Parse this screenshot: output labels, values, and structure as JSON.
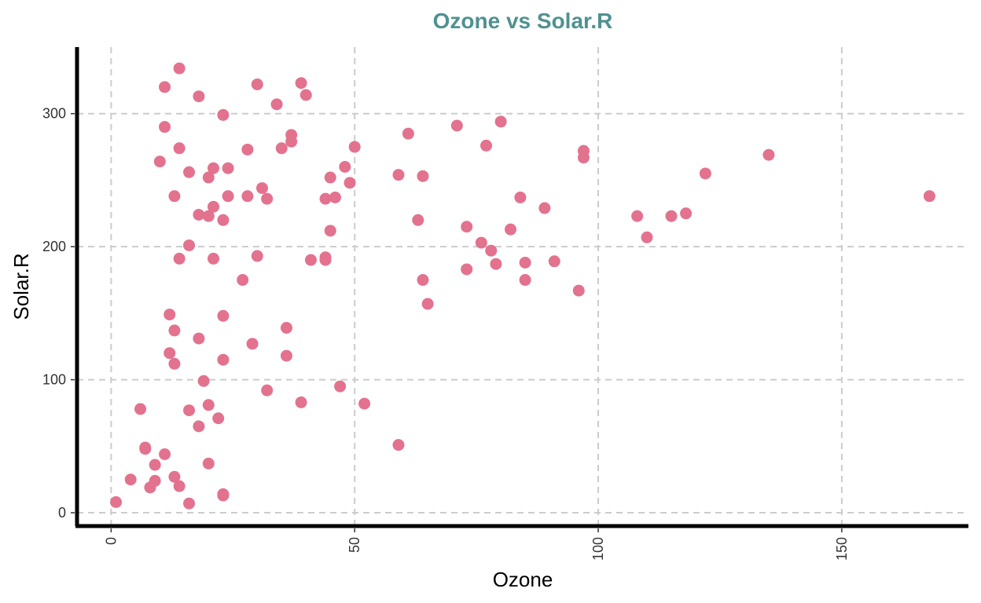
{
  "chart_data": {
    "type": "scatter",
    "title": "Ozone vs Solar.R",
    "xlabel": "Ozone",
    "ylabel": "Solar.R",
    "xlim": [
      -7,
      176
    ],
    "ylim": [
      -10,
      350
    ],
    "xticks": [
      0,
      50,
      100,
      150
    ],
    "yticks": [
      0,
      100,
      200,
      300
    ],
    "grid": true,
    "legend": "none",
    "colors": {
      "title": "#4f9191",
      "point": "#e3728f",
      "grid": "#cccccc",
      "axis": "#000000"
    },
    "points": [
      [
        1,
        8
      ],
      [
        4,
        25
      ],
      [
        6,
        78
      ],
      [
        7,
        48
      ],
      [
        7,
        49
      ],
      [
        8,
        19
      ],
      [
        9,
        24
      ],
      [
        9,
        36
      ],
      [
        10,
        264
      ],
      [
        11,
        320
      ],
      [
        11,
        290
      ],
      [
        11,
        44
      ],
      [
        12,
        149
      ],
      [
        12,
        120
      ],
      [
        13,
        238
      ],
      [
        13,
        137
      ],
      [
        13,
        112
      ],
      [
        13,
        27
      ],
      [
        14,
        334
      ],
      [
        14,
        274
      ],
      [
        14,
        191
      ],
      [
        14,
        20
      ],
      [
        16,
        256
      ],
      [
        16,
        201
      ],
      [
        16,
        77
      ],
      [
        16,
        7
      ],
      [
        18,
        313
      ],
      [
        18,
        224
      ],
      [
        18,
        131
      ],
      [
        18,
        65
      ],
      [
        19,
        99
      ],
      [
        20,
        252
      ],
      [
        20,
        223
      ],
      [
        20,
        81
      ],
      [
        20,
        37
      ],
      [
        21,
        259
      ],
      [
        21,
        230
      ],
      [
        21,
        191
      ],
      [
        22,
        71
      ],
      [
        23,
        299
      ],
      [
        23,
        220
      ],
      [
        23,
        148
      ],
      [
        23,
        115
      ],
      [
        23,
        14
      ],
      [
        23,
        13
      ],
      [
        24,
        259
      ],
      [
        24,
        238
      ],
      [
        27,
        175
      ],
      [
        28,
        273
      ],
      [
        28,
        238
      ],
      [
        29,
        127
      ],
      [
        30,
        322
      ],
      [
        30,
        193
      ],
      [
        31,
        244
      ],
      [
        32,
        236
      ],
      [
        32,
        92
      ],
      [
        34,
        307
      ],
      [
        35,
        274
      ],
      [
        36,
        139
      ],
      [
        36,
        118
      ],
      [
        37,
        284
      ],
      [
        37,
        279
      ],
      [
        39,
        323
      ],
      [
        39,
        83
      ],
      [
        40,
        314
      ],
      [
        41,
        190
      ],
      [
        44,
        236
      ],
      [
        44,
        192
      ],
      [
        44,
        190
      ],
      [
        45,
        252
      ],
      [
        45,
        212
      ],
      [
        46,
        237
      ],
      [
        47,
        95
      ],
      [
        48,
        260
      ],
      [
        49,
        248
      ],
      [
        50,
        275
      ],
      [
        52,
        82
      ],
      [
        59,
        254
      ],
      [
        59,
        51
      ],
      [
        61,
        285
      ],
      [
        63,
        220
      ],
      [
        64,
        253
      ],
      [
        64,
        175
      ],
      [
        65,
        157
      ],
      [
        71,
        291
      ],
      [
        73,
        215
      ],
      [
        73,
        183
      ],
      [
        76,
        203
      ],
      [
        77,
        276
      ],
      [
        78,
        197
      ],
      [
        79,
        187
      ],
      [
        80,
        294
      ],
      [
        82,
        213
      ],
      [
        84,
        237
      ],
      [
        85,
        188
      ],
      [
        85,
        175
      ],
      [
        89,
        229
      ],
      [
        91,
        189
      ],
      [
        96,
        167
      ],
      [
        97,
        272
      ],
      [
        97,
        267
      ],
      [
        108,
        223
      ],
      [
        110,
        207
      ],
      [
        115,
        223
      ],
      [
        118,
        225
      ],
      [
        122,
        255
      ],
      [
        135,
        269
      ],
      [
        168,
        238
      ]
    ]
  }
}
